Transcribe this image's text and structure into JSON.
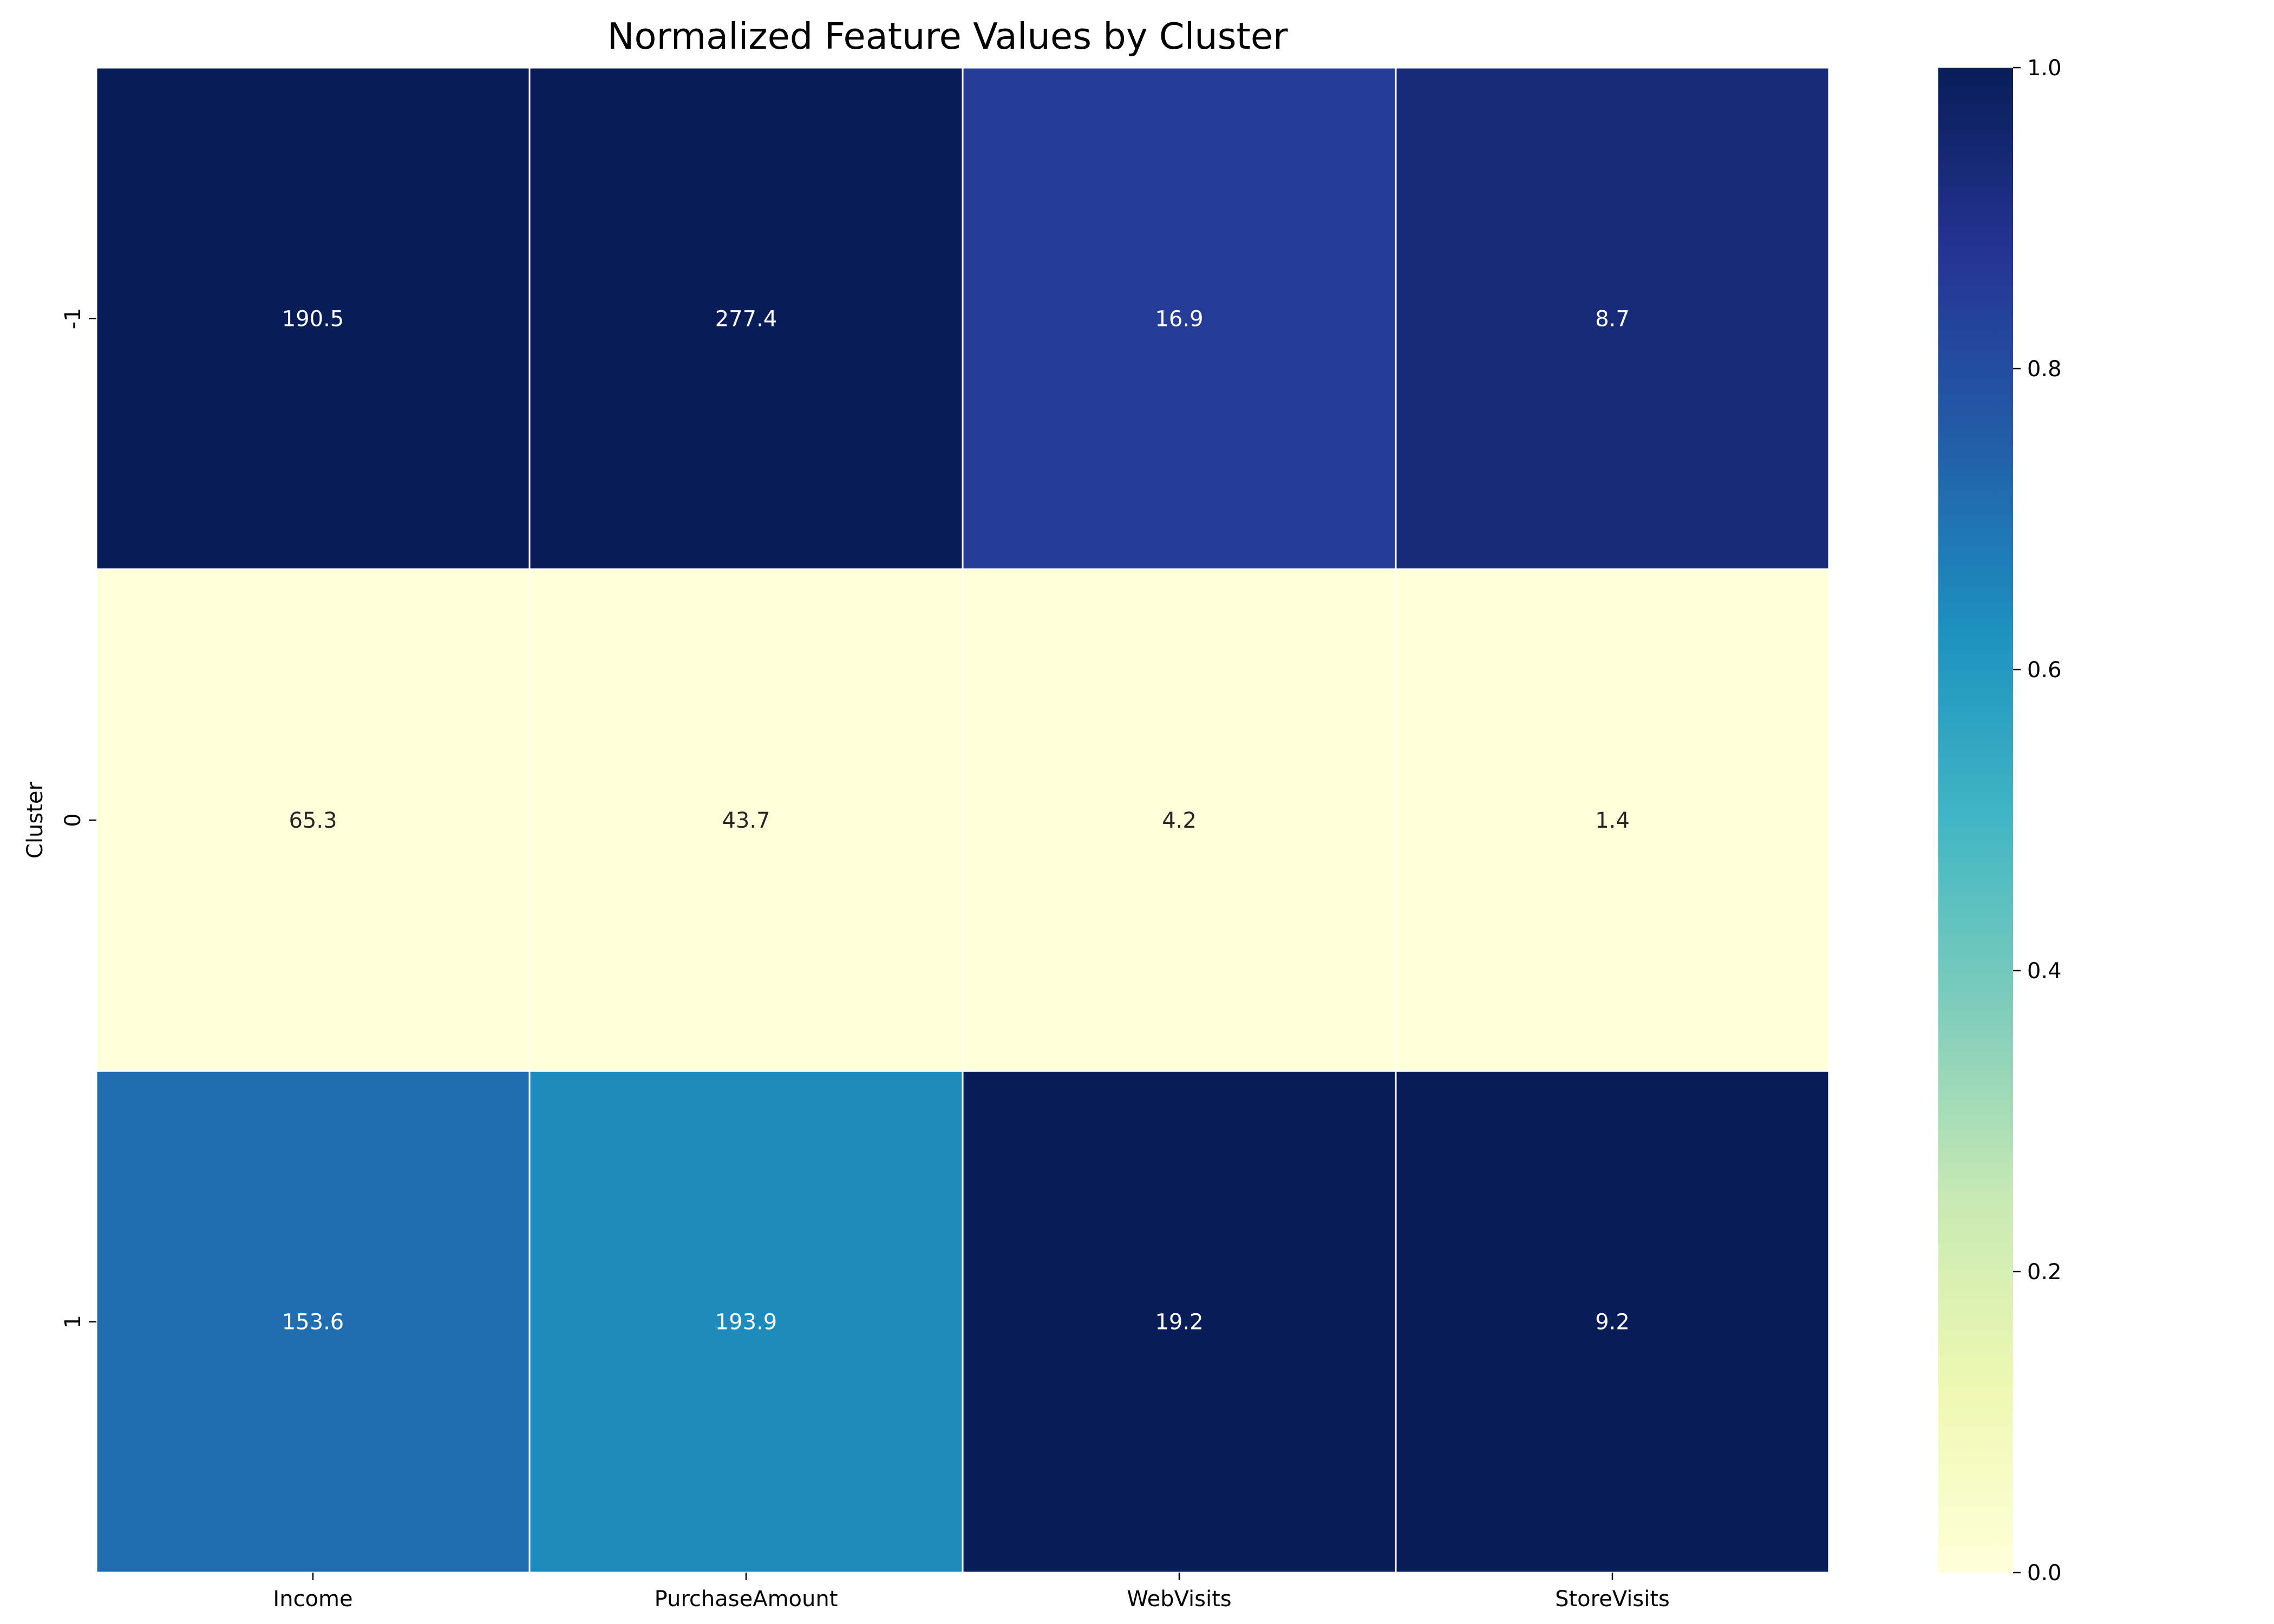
{
  "chart_data": {
    "type": "heatmap",
    "title": "Normalized Feature Values by Cluster",
    "xlabel": "",
    "ylabel": "Cluster",
    "columns": [
      "Income",
      "PurchaseAmount",
      "WebVisits",
      "StoreVisits"
    ],
    "rows": [
      "-1",
      "0",
      "1"
    ],
    "annotations": [
      [
        "190.5",
        "277.4",
        "16.9",
        "8.7"
      ],
      [
        "65.3",
        "43.7",
        "4.2",
        "1.4"
      ],
      [
        "153.6",
        "193.9",
        "19.2",
        "9.2"
      ]
    ],
    "normalized_values": [
      [
        1.0,
        1.0,
        0.85,
        0.93
      ],
      [
        0.0,
        0.0,
        0.0,
        0.0
      ],
      [
        0.71,
        0.64,
        1.0,
        1.0
      ]
    ],
    "colormap": "YlGnBu",
    "colorbar": {
      "range": [
        0.0,
        1.0
      ],
      "ticks": [
        "0.0",
        "0.2",
        "0.4",
        "0.6",
        "0.8",
        "1.0"
      ]
    }
  }
}
